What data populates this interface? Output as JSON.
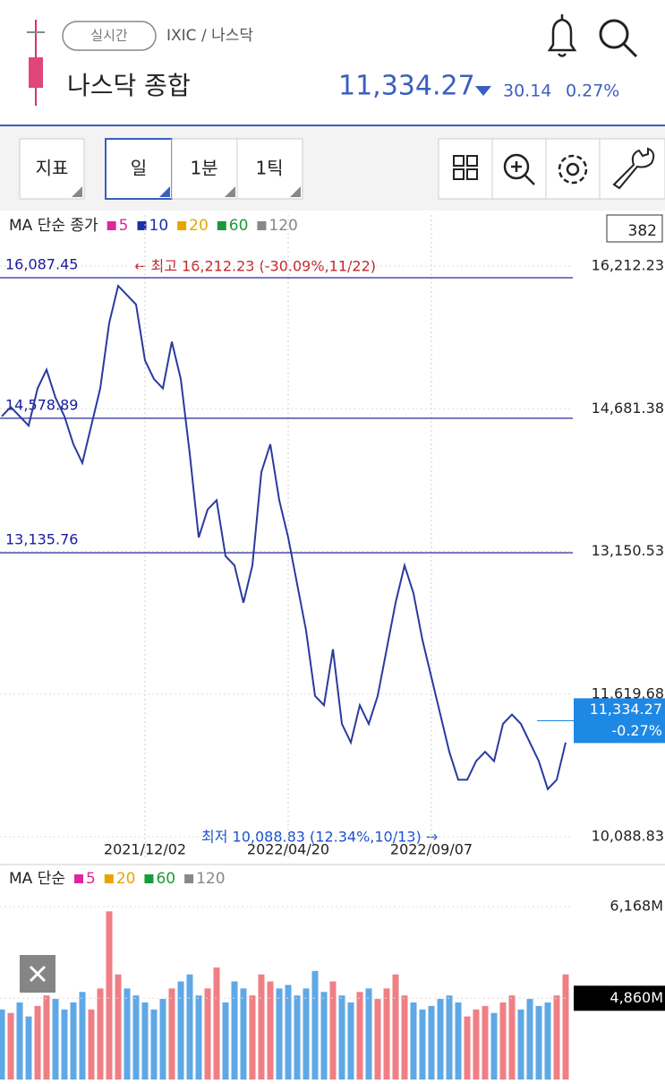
{
  "header": {
    "realtime": "실시간",
    "path": "IXIC / 나스닥",
    "name": "나스닥 종합",
    "price": "11,334.27",
    "change": "30.14",
    "change_pct": "0.27%"
  },
  "toolbar": {
    "buttons": [
      "지표",
      "일",
      "1분",
      "1틱"
    ]
  },
  "chart_data": [
    {
      "type": "line",
      "legend_title": "MA 단순 종가",
      "ma_legend": [
        {
          "name": "5",
          "color": "#e0259c"
        },
        {
          "name": "10",
          "color": "#1f2fa8"
        },
        {
          "name": "20",
          "color": "#e8a400"
        },
        {
          "name": "60",
          "color": "#1a9a3a"
        },
        {
          "name": "120",
          "color": "#888888"
        }
      ],
      "count_box": "382",
      "categories": [
        null,
        null,
        null,
        null,
        null,
        null,
        null,
        null,
        null,
        null,
        null,
        null,
        null,
        null,
        null,
        null,
        "2021/12/02",
        null,
        null,
        null,
        null,
        null,
        null,
        null,
        null,
        null,
        null,
        null,
        null,
        null,
        null,
        null,
        "2022/04/20",
        null,
        null,
        null,
        null,
        null,
        null,
        null,
        null,
        null,
        null,
        null,
        null,
        null,
        null,
        null,
        "2022/09/07",
        null,
        null,
        null,
        null,
        null,
        null,
        null,
        null,
        null,
        null,
        null,
        null,
        null,
        null,
        null
      ],
      "values": [
        14600,
        14700,
        14600,
        14500,
        14900,
        15100,
        14800,
        14600,
        14300,
        14100,
        14500,
        14900,
        15600,
        16000,
        15900,
        15800,
        15200,
        15000,
        14900,
        15400,
        15000,
        14200,
        13300,
        13600,
        13700,
        13100,
        13000,
        12600,
        13000,
        14000,
        14300,
        13700,
        13300,
        12800,
        12300,
        11600,
        11500,
        12100,
        11300,
        11100,
        11500,
        11300,
        11600,
        12100,
        12600,
        13000,
        12700,
        12200,
        11800,
        11400,
        11000,
        10700,
        10700,
        10900,
        11000,
        10900,
        11300,
        11400,
        11300,
        11100,
        10900,
        10600,
        10700,
        11100
      ],
      "color": "#2a3a9e",
      "ylim": [
        10088.83,
        16212.23
      ],
      "yticks": [
        {
          "value": 16212.23,
          "label": "16,212.23"
        },
        {
          "value": 14681.38,
          "label": "14,681.38"
        },
        {
          "value": 13150.53,
          "label": "13,150.53"
        },
        {
          "value": 11619.68,
          "label": "11,619.68"
        },
        {
          "value": 10088.83,
          "label": "10,088.83"
        }
      ],
      "levels": [
        {
          "value": 16087.45,
          "label": "16,087.45"
        },
        {
          "value": 14578.89,
          "label": "14,578.89"
        },
        {
          "value": 13135.76,
          "label": "13,135.76"
        }
      ],
      "current": {
        "value": 11334.27,
        "label": "11,334.27",
        "change": "-0.27%"
      },
      "annotations": [
        "← 최고 16,212.23 (-30.09%,11/22)",
        "최저 10,088.83 (12.34%,10/13) →"
      ]
    },
    {
      "type": "bar",
      "legend_title": "MA 단순",
      "ma_legend": [
        {
          "name": "5",
          "color": "#e0259c"
        },
        {
          "name": "20",
          "color": "#e8a400"
        },
        {
          "name": "60",
          "color": "#1a9a3a"
        },
        {
          "name": "120",
          "color": "#888888"
        }
      ],
      "values": [
        4700,
        4650,
        4800,
        4600,
        4750,
        4900,
        4850,
        4700,
        4800,
        4950,
        4700,
        5000,
        6100,
        5200,
        5000,
        4900,
        4800,
        4700,
        4850,
        5000,
        5100,
        5200,
        4900,
        5000,
        5300,
        4800,
        5100,
        5000,
        4900,
        5200,
        5100,
        5000,
        5050,
        4900,
        5000,
        5250,
        4950,
        5100,
        4900,
        4800,
        4950,
        5000,
        4850,
        5000,
        5200,
        4900,
        4800,
        4700,
        4750,
        4850,
        4900,
        4800,
        4600,
        4700,
        4750,
        4650,
        4800,
        4900,
        4700,
        4850,
        4750,
        4800,
        4900,
        5200
      ],
      "ylim": [
        3700,
        6168
      ],
      "yticks": [
        {
          "value": 6168,
          "label": "6,168M"
        },
        {
          "value": 4860,
          "label": "4,860M"
        }
      ]
    }
  ]
}
